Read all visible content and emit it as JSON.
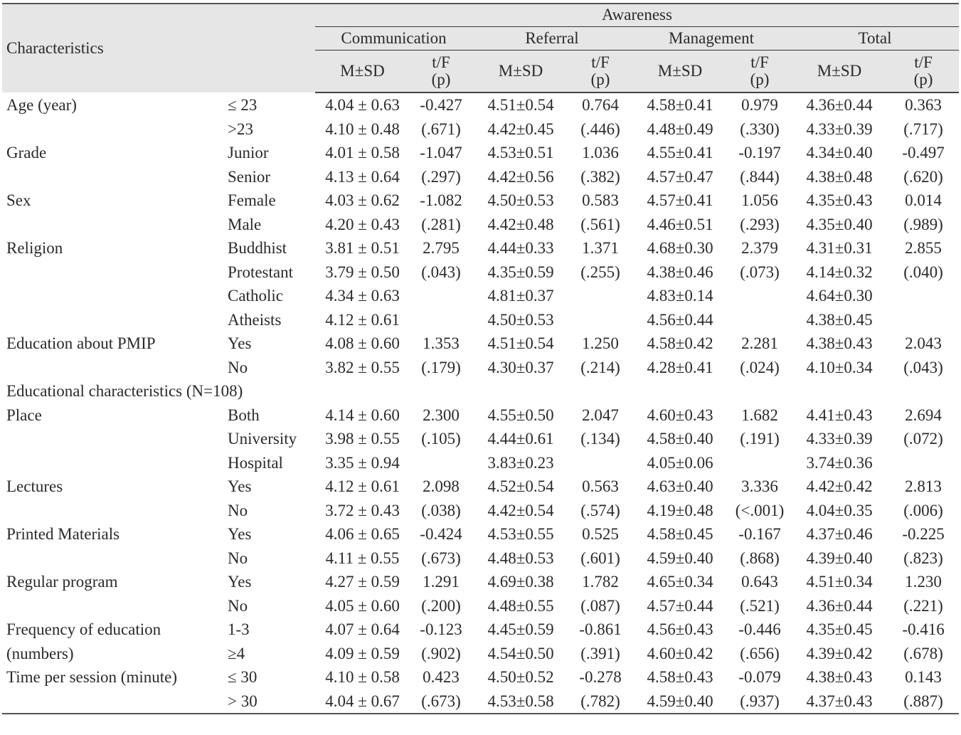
{
  "header": {
    "characteristics": "Characteristics",
    "awareness": "Awareness",
    "groups": [
      "Communication",
      "Referral",
      "Management",
      "Total"
    ],
    "msd": "M±SD",
    "tf": "t/F",
    "p": "(p)"
  },
  "rows": [
    {
      "char": "Age (year)",
      "sub": "≤ 23",
      "v": [
        "4.04 ± 0.63",
        "-0.427",
        "4.51±0.54",
        "0.764",
        "4.58±0.41",
        "0.979",
        "4.36±0.44",
        "0.363"
      ]
    },
    {
      "char": "",
      "sub": ">23",
      "v": [
        "4.10 ± 0.48",
        "(.671)",
        "4.42±0.45",
        "(.446)",
        "4.48±0.49",
        "(.330)",
        "4.33±0.39",
        "(.717)"
      ]
    },
    {
      "char": "Grade",
      "sub": "Junior",
      "v": [
        "4.01 ± 0.58",
        "-1.047",
        "4.53±0.51",
        "1.036",
        "4.55±0.41",
        "-0.197",
        "4.34±0.40",
        "-0.497"
      ]
    },
    {
      "char": "",
      "sub": "Senior",
      "v": [
        "4.13 ± 0.64",
        "(.297)",
        "4.42±0.56",
        "(.382)",
        "4.57±0.47",
        "(.844)",
        "4.38±0.48",
        "(.620)"
      ]
    },
    {
      "char": "Sex",
      "sub": "Female",
      "v": [
        "4.03 ± 0.62",
        "-1.082",
        "4.50±0.53",
        "0.583",
        "4.57±0.41",
        "1.056",
        "4.35±0.43",
        "0.014"
      ]
    },
    {
      "char": "",
      "sub": "Male",
      "v": [
        "4.20 ± 0.43",
        "(.281)",
        "4.42±0.48",
        "(.561)",
        "4.46±0.51",
        "(.293)",
        "4.35±0.40",
        "(.989)"
      ]
    },
    {
      "char": "Religion",
      "sub": "Buddhist",
      "v": [
        "3.81 ± 0.51",
        "2.795",
        "4.44±0.33",
        "1.371",
        "4.68±0.30",
        "2.379",
        "4.31±0.31",
        "2.855"
      ]
    },
    {
      "char": "",
      "sub": "Protestant",
      "v": [
        "3.79 ± 0.50",
        "(.043)",
        "4.35±0.59",
        "(.255)",
        "4.38±0.46",
        "(.073)",
        "4.14±0.32",
        "(.040)"
      ]
    },
    {
      "char": "",
      "sub": "Catholic",
      "v": [
        "4.34 ± 0.63",
        "",
        "4.81±0.37",
        "",
        "4.83±0.14",
        "",
        "4.64±0.30",
        ""
      ]
    },
    {
      "char": "",
      "sub": "Atheists",
      "v": [
        "4.12 ± 0.61",
        "",
        "4.50±0.53",
        "",
        "4.56±0.44",
        "",
        "4.38±0.45",
        ""
      ],
      "tall": true
    },
    {
      "char": "Education about PMIP",
      "sub": "Yes",
      "v": [
        "4.08 ± 0.60",
        "1.353",
        "4.51±0.54",
        "1.250",
        "4.58±0.42",
        "2.281",
        "4.38±0.43",
        "2.043"
      ],
      "tall": true
    },
    {
      "char": "",
      "sub": "No",
      "v": [
        "3.82 ± 0.55",
        "(.179)",
        "4.30±0.37",
        "(.214)",
        "4.28±0.41",
        "(.024)",
        "4.10±0.34",
        "(.043)"
      ]
    },
    {
      "section": "Educational characteristics (N=108)"
    },
    {
      "char": "Place",
      "sub": "Both",
      "v": [
        "4.14 ± 0.60",
        "2.300",
        "4.55±0.50",
        "2.047",
        "4.60±0.43",
        "1.682",
        "4.41±0.43",
        "2.694"
      ]
    },
    {
      "char": "",
      "sub": "University",
      "v": [
        "3.98 ± 0.55",
        "(.105)",
        "4.44±0.61",
        "(.134)",
        "4.58±0.40",
        "(.191)",
        "4.33±0.39",
        "(.072)"
      ]
    },
    {
      "char": "",
      "sub": "Hospital",
      "v": [
        "3.35 ± 0.94",
        "",
        "3.83±0.23",
        "",
        "4.05±0.06",
        "",
        "3.74±0.36",
        ""
      ]
    },
    {
      "char": "Lectures",
      "sub": "Yes",
      "v": [
        "4.12 ± 0.61",
        "2.098",
        "4.52±0.54",
        "0.563",
        "4.63±0.40",
        "3.336",
        "4.42±0.42",
        "2.813"
      ],
      "tall": true
    },
    {
      "char": "",
      "sub": "No",
      "v": [
        "3.72 ± 0.43",
        "(.038)",
        "4.42±0.54",
        "(.574)",
        "4.19±0.48",
        "(<.001)",
        "4.04±0.35",
        "(.006)"
      ]
    },
    {
      "char": "Printed Materials",
      "sub": "Yes",
      "v": [
        "4.06 ± 0.65",
        "-0.424",
        "4.53±0.55",
        "0.525",
        "4.58±0.45",
        "-0.167",
        "4.37±0.46",
        "-0.225"
      ]
    },
    {
      "char": "",
      "sub": "No",
      "v": [
        "4.11 ± 0.55",
        "(.673)",
        "4.48±0.53",
        "(.601)",
        "4.59±0.40",
        "(.868)",
        "4.39±0.40",
        "(.823)"
      ]
    },
    {
      "char": "Regular program",
      "sub": "Yes",
      "v": [
        "4.27 ± 0.59",
        "1.291",
        "4.69±0.38",
        "1.782",
        "4.65±0.34",
        "0.643",
        "4.51±0.34",
        "1.230"
      ]
    },
    {
      "char": "",
      "sub": "No",
      "v": [
        "4.05 ± 0.60",
        "(.200)",
        "4.48±0.55",
        "(.087)",
        "4.57±0.44",
        "(.521)",
        "4.36±0.44",
        "(.221)"
      ]
    },
    {
      "char": "Frequency of education",
      "sub": "1-3",
      "v": [
        "4.07 ± 0.64",
        "-0.123",
        "4.45±0.59",
        "-0.861",
        "4.56±0.43",
        "-0.446",
        "4.35±0.45",
        "-0.416"
      ]
    },
    {
      "char": "(numbers)",
      "sub": "≥4",
      "v": [
        "4.09 ± 0.59",
        "(.902)",
        "4.54±0.50",
        "(.391)",
        "4.60±0.42",
        "(.656)",
        "4.39±0.42",
        "(.678)"
      ]
    },
    {
      "char": "Time per session (minute)",
      "sub": "≤ 30",
      "v": [
        "4.10 ± 0.58",
        "0.423",
        "4.50±0.52",
        "-0.278",
        "4.58±0.43",
        "-0.079",
        "4.38±0.43",
        "0.143"
      ]
    },
    {
      "char": "",
      "sub": "> 30",
      "v": [
        "4.04 ± 0.67",
        "(.673)",
        "4.53±0.58",
        "(.782)",
        "4.59±0.40",
        "(.937)",
        "4.37±0.43",
        "(.887)"
      ]
    }
  ]
}
